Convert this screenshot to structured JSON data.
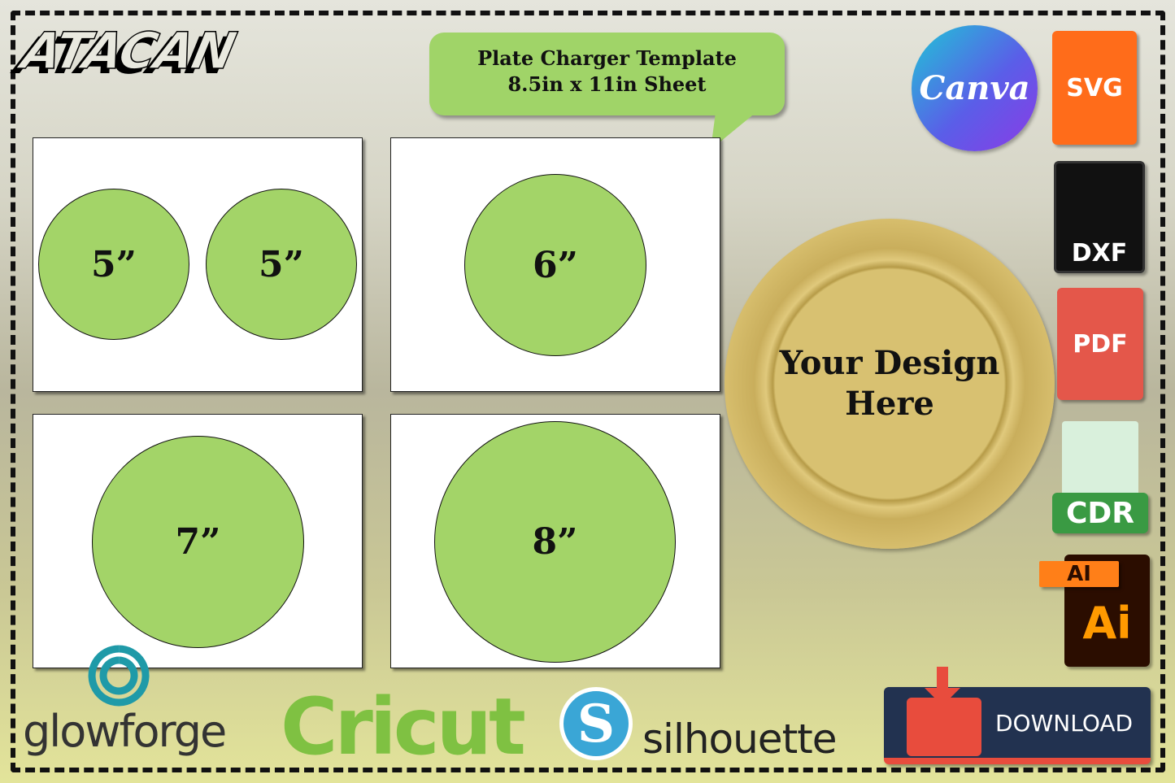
{
  "brand": "ATACAN",
  "bubble": {
    "line1": "Plate Charger Template",
    "line2": "8.5in x 11in Sheet"
  },
  "panels": [
    {
      "circles": [
        "5”",
        "5”"
      ]
    },
    {
      "circles": [
        "6”"
      ]
    },
    {
      "circles": [
        "7”"
      ]
    },
    {
      "circles": [
        "8”"
      ]
    }
  ],
  "colors": {
    "circle": "#a3d468",
    "bubble": "#a0d468",
    "plate": "#d4bb68",
    "download_bg": "#223250",
    "download_accent": "#e84c3d"
  },
  "plate": {
    "line1": "Your Design",
    "line2": "Here"
  },
  "formats": {
    "canva": "Canva",
    "svg": "SVG",
    "dxf": "DXF",
    "pdf": "PDF",
    "cdr": "CDR",
    "ai_tag": "AI",
    "ai": "Ai"
  },
  "partners": {
    "glowforge": "glowforge",
    "cricut": "Cricut",
    "silhouette": "silhouette"
  },
  "download": {
    "label": "DOWNLOAD",
    "icon": "folder-download-icon"
  }
}
